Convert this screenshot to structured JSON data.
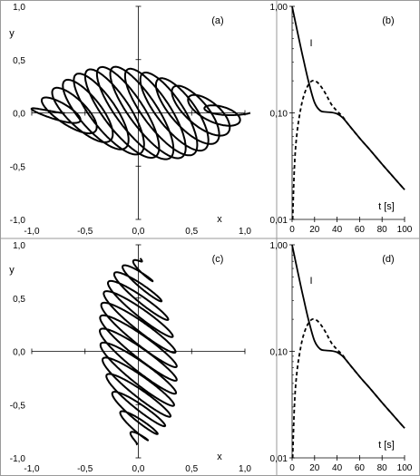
{
  "chart_data": [
    {
      "type": "line",
      "panel_label": "(a)",
      "xlabel": "x",
      "ylabel": "y",
      "xlim": [
        -1.0,
        1.0
      ],
      "ylim": [
        -1.0,
        1.0
      ],
      "x_ticks": [
        "-1,0",
        "-0,5",
        "0,0",
        "0,5",
        "1,0"
      ],
      "y_ticks": [
        "-1,0",
        "-0,5",
        "0,0",
        "0,5",
        "1,0"
      ],
      "grid": false,
      "curve": {
        "description": "decaying oscillation trajectory in x-y plane",
        "loops": 14,
        "start_point": [
          -0.95,
          0.04
        ],
        "max_loop_amplitude_x": 0.9,
        "min_loop_amplitude_x": 0.1,
        "max_loop_amplitude_y": 0.43,
        "end_point_direction": "toward (0.95, 0.0)"
      }
    },
    {
      "type": "line",
      "panel_label": "(b)",
      "xlabel": "t [s]",
      "ylabel": "I",
      "xlim": [
        0,
        100
      ],
      "ylim": [
        0.01,
        1.0
      ],
      "yscale": "log",
      "x_ticks": [
        "0",
        "20",
        "40",
        "60",
        "80",
        "100"
      ],
      "y_ticks": [
        "0,01",
        "0,10",
        "1,00"
      ],
      "grid": false,
      "series": [
        {
          "style": "solid",
          "x": [
            0,
            5,
            10,
            15,
            20,
            25,
            30,
            35,
            40,
            45,
            50,
            60,
            70,
            80,
            90,
            100
          ],
          "y": [
            1.0,
            0.56,
            0.32,
            0.19,
            0.125,
            0.105,
            0.102,
            0.101,
            0.098,
            0.09,
            0.078,
            0.058,
            0.044,
            0.033,
            0.025,
            0.019
          ]
        },
        {
          "style": "dashed",
          "x": [
            0.5,
            2,
            4,
            7,
            10,
            14,
            18,
            22,
            26,
            30,
            35,
            40,
            45,
            50,
            60,
            70,
            80,
            90,
            100
          ],
          "y": [
            0.01,
            0.03,
            0.06,
            0.1,
            0.14,
            0.18,
            0.2,
            0.195,
            0.175,
            0.15,
            0.12,
            0.104,
            0.092,
            0.078,
            0.058,
            0.044,
            0.033,
            0.025,
            0.019
          ]
        }
      ]
    },
    {
      "type": "line",
      "panel_label": "(c)",
      "xlabel": "x",
      "ylabel": "y",
      "xlim": [
        -1.0,
        1.0
      ],
      "ylim": [
        -1.0,
        1.0
      ],
      "x_ticks": [
        "-1,0",
        "-0,5",
        "0,0",
        "0,5",
        "1,0"
      ],
      "y_ticks": [
        "-1,0",
        "-0,5",
        "0,0",
        "0,5",
        "1,0"
      ],
      "grid": false,
      "curve": {
        "description": "decaying oscillation trajectory in x-y plane",
        "loops": 14,
        "start_point": [
          0.02,
          0.95
        ],
        "max_loop_amplitude_x": 0.45,
        "max_loop_amplitude_y": 0.9,
        "min_loop_amplitude_y": 0.3,
        "end_point_direction": "toward (-0.02, -0.95)"
      }
    },
    {
      "type": "line",
      "panel_label": "(d)",
      "xlabel": "t [s]",
      "ylabel": "I",
      "xlim": [
        0,
        100
      ],
      "ylim": [
        0.01,
        1.0
      ],
      "yscale": "log",
      "x_ticks": [
        "0",
        "20",
        "40",
        "60",
        "80",
        "100"
      ],
      "y_ticks": [
        "0,01",
        "0,10",
        "1,00"
      ],
      "grid": false,
      "series": [
        {
          "style": "solid",
          "x": [
            0,
            5,
            10,
            15,
            20,
            25,
            30,
            35,
            40,
            45,
            50,
            60,
            70,
            80,
            90,
            100
          ],
          "y": [
            1.0,
            0.56,
            0.32,
            0.19,
            0.125,
            0.105,
            0.102,
            0.101,
            0.098,
            0.09,
            0.078,
            0.058,
            0.044,
            0.033,
            0.025,
            0.019
          ]
        },
        {
          "style": "dashed",
          "x": [
            0.5,
            2,
            4,
            7,
            10,
            14,
            18,
            22,
            26,
            30,
            35,
            40,
            45,
            50,
            60,
            70,
            80,
            90,
            100
          ],
          "y": [
            0.01,
            0.03,
            0.06,
            0.1,
            0.14,
            0.18,
            0.2,
            0.195,
            0.175,
            0.15,
            0.12,
            0.104,
            0.092,
            0.078,
            0.058,
            0.044,
            0.033,
            0.025,
            0.019
          ]
        }
      ]
    }
  ]
}
